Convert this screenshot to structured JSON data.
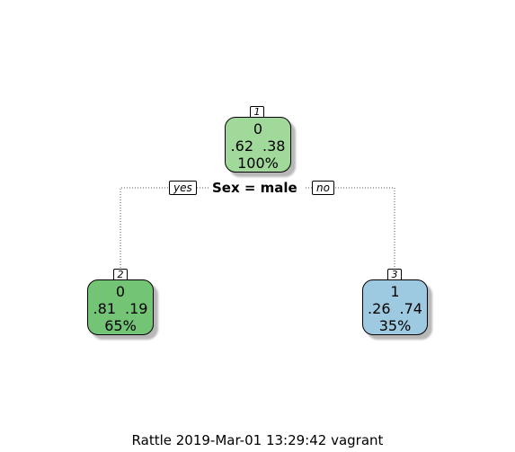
{
  "tree": {
    "root": {
      "id": "1",
      "class": "0",
      "probs": [
        ".62",
        ".38"
      ],
      "percent": "100%",
      "color": "#a1d99b"
    },
    "split": {
      "label": "Sex = male",
      "yes_label": "yes",
      "no_label": "no"
    },
    "left": {
      "id": "2",
      "class": "0",
      "probs": [
        ".81",
        ".19"
      ],
      "percent": "65%",
      "color": "#74c476"
    },
    "right": {
      "id": "3",
      "class": "1",
      "probs": [
        ".26",
        ".74"
      ],
      "percent": "35%",
      "color": "#9ecae1"
    }
  },
  "caption": "Rattle 2019-Mar-01 13:29:42 vagrant"
}
